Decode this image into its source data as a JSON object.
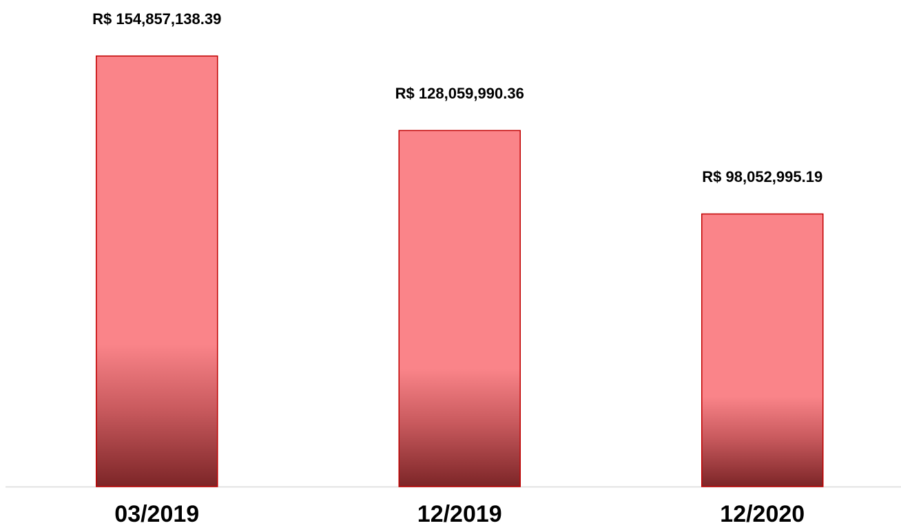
{
  "chart_data": {
    "type": "bar",
    "categories": [
      "03/2019",
      "12/2019",
      "12/2020"
    ],
    "values": [
      154857138.39,
      128059990.36,
      98052995.19
    ],
    "value_labels": [
      "R$ 154,857,138.39",
      "R$ 128,059,990.36",
      "R$ 98,052,995.19"
    ],
    "color": "#fa8489",
    "ylim": [
      0,
      175000000
    ]
  }
}
